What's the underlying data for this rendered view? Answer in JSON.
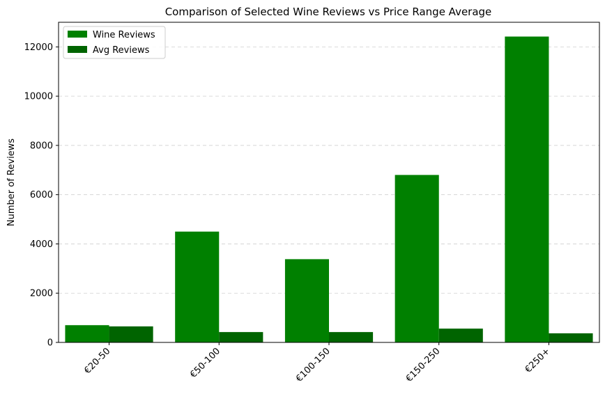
{
  "chart_data": {
    "type": "bar",
    "title": "Comparison of Selected Wine Reviews vs Price Range Average",
    "xlabel": "",
    "ylabel": "Number of Reviews",
    "categories": [
      "€20-50",
      "€50-100",
      "€100-150",
      "€150-250",
      "€250+"
    ],
    "series": [
      {
        "name": "Wine Reviews",
        "color": "#008000",
        "values": [
          700,
          4500,
          3380,
          6800,
          12420
        ]
      },
      {
        "name": "Avg Reviews",
        "color": "#006400",
        "values": [
          650,
          420,
          420,
          560,
          370
        ]
      }
    ],
    "ylim": [
      0,
      13000
    ],
    "yticks": [
      0,
      2000,
      4000,
      6000,
      8000,
      10000,
      12000
    ],
    "grid": "y-dashed",
    "legend_position": "top-left"
  }
}
